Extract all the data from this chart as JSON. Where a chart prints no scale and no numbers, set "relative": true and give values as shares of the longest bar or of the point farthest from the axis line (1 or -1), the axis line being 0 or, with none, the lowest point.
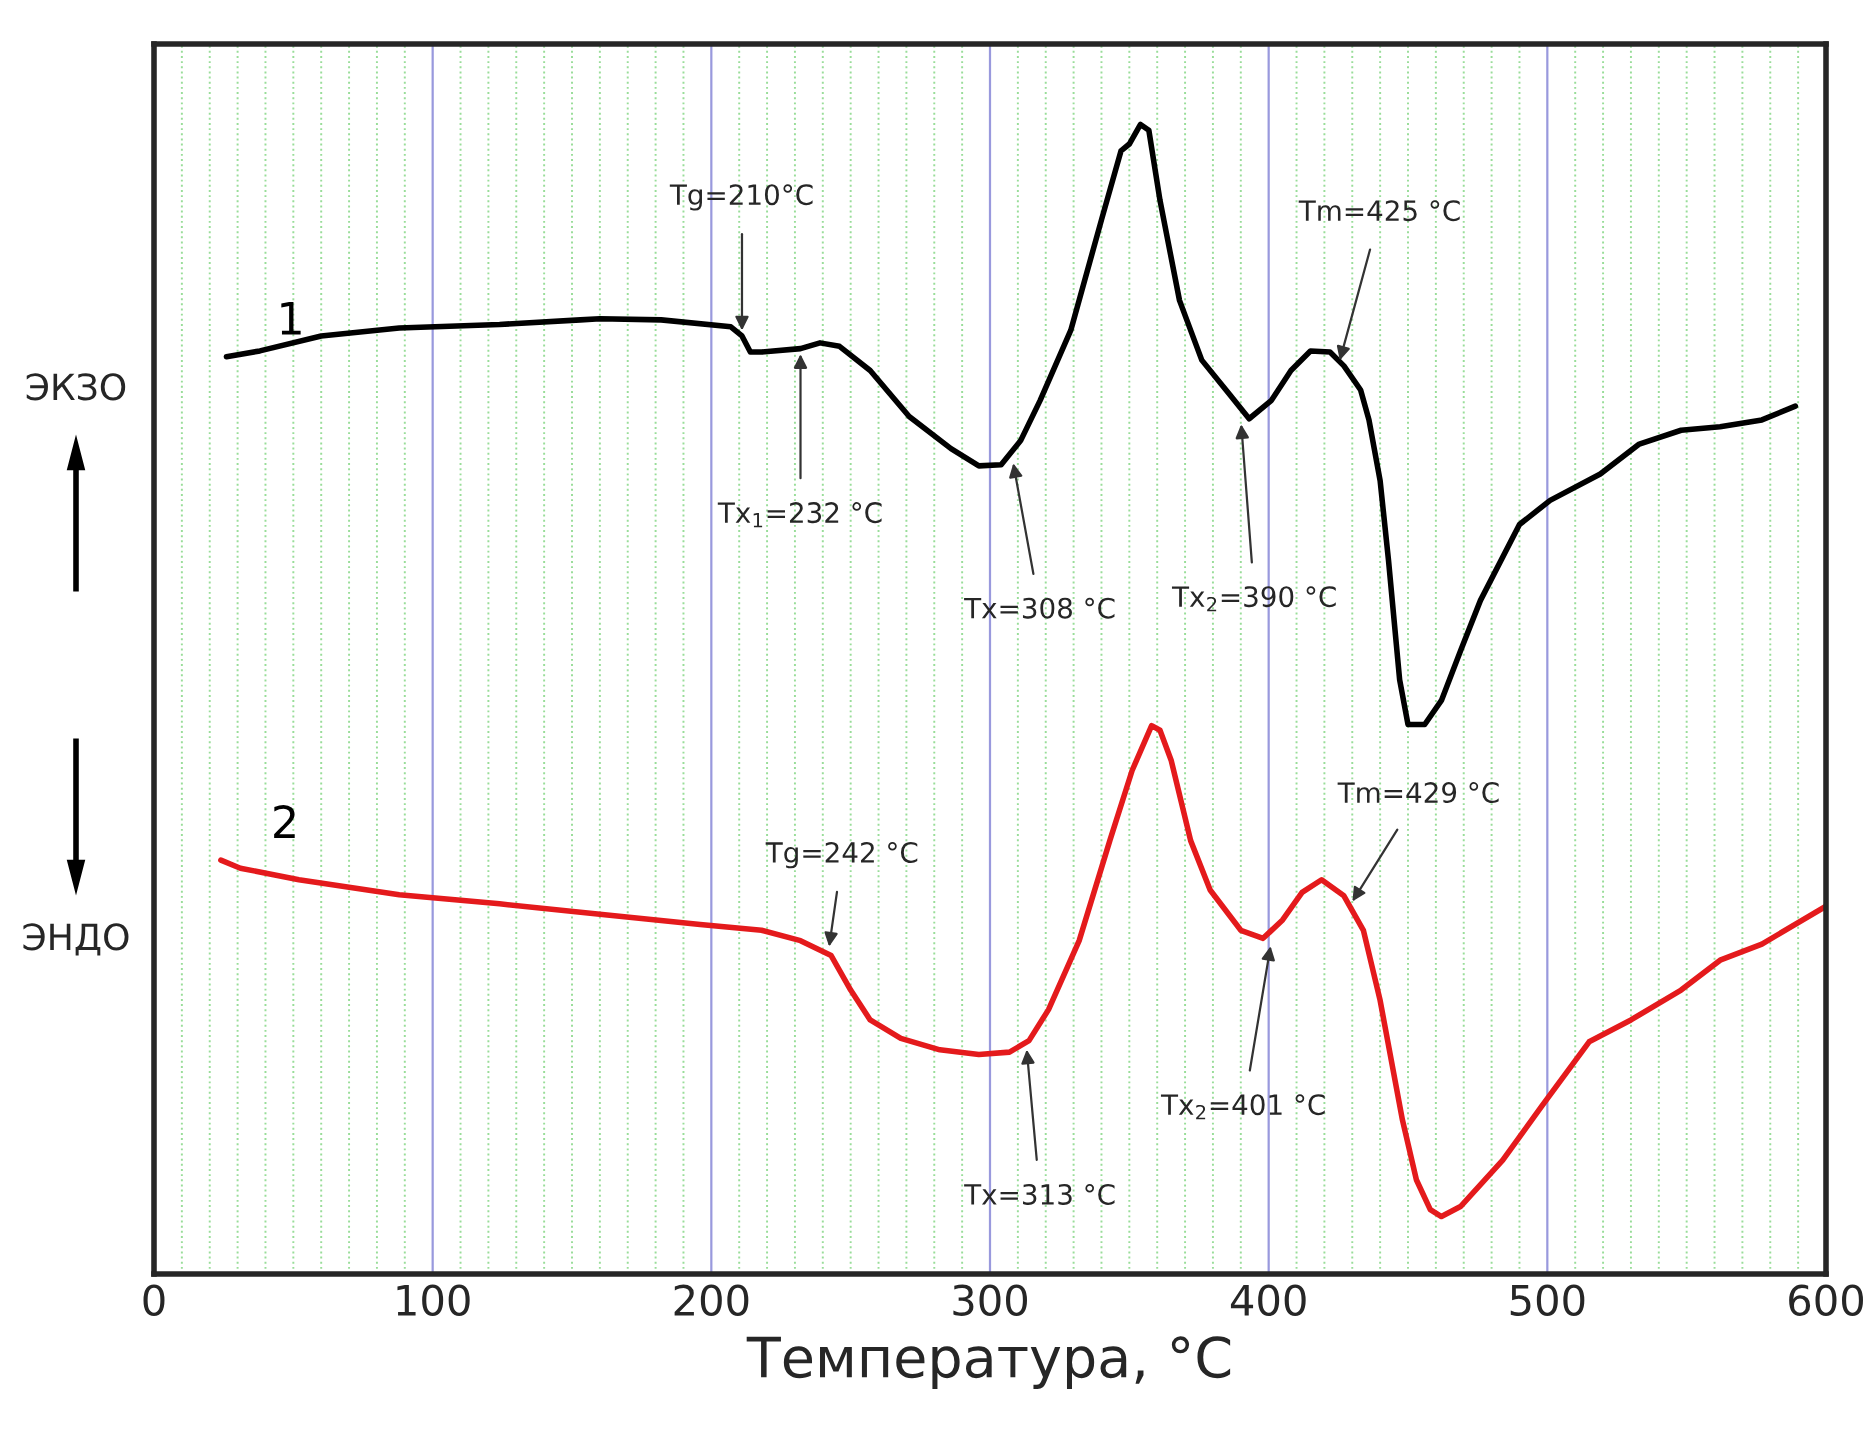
{
  "chart_data": {
    "type": "line",
    "relative": true,
    "xlabel": "Температура, °C",
    "xlim": [
      0,
      600
    ],
    "xticks": [
      0,
      {
        "value": 10,
        "label": null
      },
      {
        "value": 20,
        "label": null
      },
      {
        "value": 30,
        "label": null
      },
      {
        "value": 40,
        "label": null
      },
      {
        "value": 50,
        "label": null
      },
      {
        "value": 60,
        "label": null
      },
      {
        "value": 70,
        "label": null
      },
      {
        "value": 80,
        "label": null
      },
      {
        "value": 90,
        "label": null
      },
      100,
      {
        "value": 110,
        "label": null
      },
      {
        "value": 120,
        "label": null
      },
      {
        "value": 130,
        "label": null
      },
      {
        "value": 140,
        "label": null
      },
      {
        "value": 150,
        "label": null
      },
      {
        "value": 160,
        "label": null
      },
      {
        "value": 170,
        "label": null
      },
      {
        "value": 180,
        "label": null
      },
      {
        "value": 190,
        "label": null
      },
      200,
      {
        "value": 210,
        "label": null
      },
      {
        "value": 220,
        "label": null
      },
      {
        "value": 230,
        "label": null
      },
      {
        "value": 240,
        "label": null
      },
      {
        "value": 250,
        "label": null
      },
      {
        "value": 260,
        "label": null
      },
      {
        "value": 270,
        "label": null
      },
      {
        "value": 280,
        "label": null
      },
      {
        "value": 290,
        "label": null
      },
      300,
      {
        "value": 310,
        "label": null
      },
      {
        "value": 320,
        "label": null
      },
      {
        "value": 330,
        "label": null
      },
      {
        "value": 340,
        "label": null
      },
      {
        "value": 350,
        "label": null
      },
      {
        "value": 360,
        "label": null
      },
      {
        "value": 370,
        "label": null
      },
      {
        "value": 380,
        "label": null
      },
      {
        "value": 390,
        "label": null
      },
      400,
      {
        "value": 410,
        "label": null
      },
      {
        "value": 420,
        "label": null
      },
      {
        "value": 430,
        "label": null
      },
      {
        "value": 440,
        "label": null
      },
      {
        "value": 450,
        "label": null
      },
      {
        "value": 460,
        "label": null
      },
      {
        "value": 470,
        "label": null
      },
      {
        "value": 480,
        "label": null
      },
      {
        "value": 490,
        "label": null
      },
      500,
      {
        "value": 510,
        "label": null
      },
      {
        "value": 520,
        "label": null
      },
      {
        "value": 530,
        "label": null
      },
      {
        "value": 540,
        "label": null
      },
      {
        "value": 550,
        "label": null
      },
      {
        "value": 560,
        "label": null
      },
      {
        "value": 570,
        "label": null
      },
      {
        "value": 580,
        "label": null
      },
      {
        "value": 590,
        "label": null
      },
      600
    ],
    "grid": "x",
    "legend": false,
    "tick_labels": "x",
    "series": [
      {
        "name": "1",
        "color": "#000000",
        "x": [
          26,
          38,
          60,
          88,
          124,
          153,
          160,
          182,
          207,
          211,
          214,
          218,
          232,
          239,
          246,
          257,
          271,
          286,
          296,
          304,
          311,
          318,
          329,
          340,
          347,
          350,
          354,
          357,
          361,
          368,
          376,
          386,
          393,
          401,
          408,
          415,
          422,
          427,
          433,
          436,
          440,
          443,
          447,
          450,
          456,
          462,
          469,
          476,
          490,
          501,
          519,
          533,
          548,
          562,
          577,
          589
        ],
        "values": [
          0.798,
          0.803,
          0.816,
          0.823,
          0.826,
          0.83,
          0.831,
          0.83,
          0.824,
          0.816,
          0.802,
          0.802,
          0.805,
          0.81,
          0.807,
          0.786,
          0.746,
          0.718,
          0.703,
          0.704,
          0.725,
          0.76,
          0.821,
          0.917,
          0.977,
          0.983,
          1.0,
          0.995,
          0.934,
          0.847,
          0.795,
          0.765,
          0.744,
          0.76,
          0.786,
          0.803,
          0.802,
          0.79,
          0.769,
          0.743,
          0.69,
          0.621,
          0.517,
          0.478,
          0.478,
          0.499,
          0.543,
          0.586,
          0.652,
          0.673,
          0.696,
          0.722,
          0.734,
          0.737,
          0.743,
          0.755
        ]
      },
      {
        "name": "2",
        "color": "#e41a1c",
        "x": [
          24,
          31,
          52,
          88,
          124,
          160,
          196,
          218,
          232,
          243,
          250,
          257,
          268,
          282,
          296,
          307,
          314,
          321,
          332,
          343,
          351,
          358,
          361,
          365,
          372,
          379,
          390,
          398,
          405,
          412,
          419,
          427,
          434,
          440,
          448,
          453,
          458,
          462,
          469,
          484,
          498,
          515,
          530,
          548,
          562,
          577,
          600
        ],
        "values": [
          0.36,
          0.353,
          0.343,
          0.33,
          0.322,
          0.313,
          0.304,
          0.299,
          0.29,
          0.277,
          0.247,
          0.221,
          0.205,
          0.195,
          0.191,
          0.193,
          0.203,
          0.23,
          0.29,
          0.377,
          0.438,
          0.477,
          0.473,
          0.447,
          0.377,
          0.334,
          0.299,
          0.292,
          0.308,
          0.332,
          0.343,
          0.329,
          0.299,
          0.238,
          0.134,
          0.082,
          0.056,
          0.05,
          0.059,
          0.099,
          0.146,
          0.202,
          0.221,
          0.247,
          0.273,
          0.287,
          0.32
        ]
      }
    ],
    "annotations": [
      {
        "text": "Tg=210°C",
        "x": 211,
        "y": 0.816
      },
      {
        "text": "Tx$_{1}$=232 °C",
        "x": 232,
        "y": 0.805
      },
      {
        "text": "Tx=308 °C",
        "x": 308,
        "y": 0.71
      },
      {
        "text": "Tx$_{2}$=390 °C",
        "x": 390,
        "y": 0.744
      },
      {
        "text": "Tm=425 °C",
        "x": 425,
        "y": 0.79
      },
      {
        "text": "Tg=242 °C",
        "x": 242,
        "y": 0.28
      },
      {
        "text": "Tx=313 °C",
        "x": 313,
        "y": 0.2
      },
      {
        "text": "Tx$_{2}$=401 °C",
        "x": 401,
        "y": 0.29
      },
      {
        "text": "Tm=429 °C",
        "x": 429,
        "y": 0.32
      },
      "ЭКЗО",
      "ЭНДО"
    ]
  }
}
